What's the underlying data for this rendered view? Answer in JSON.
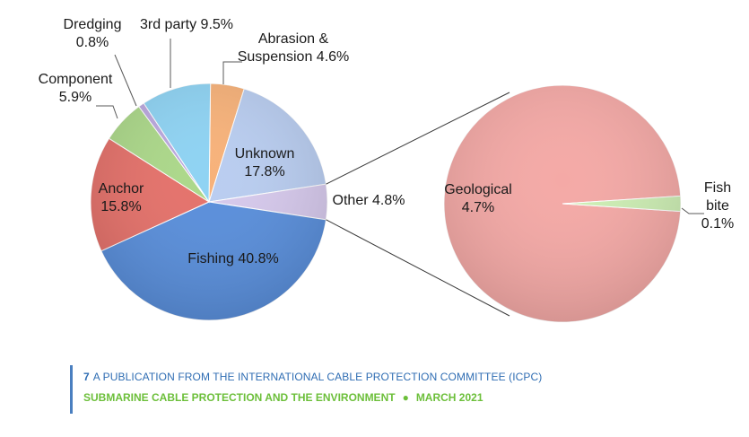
{
  "chart_data": {
    "type": "pie",
    "title": "",
    "main_pie": {
      "slices": [
        {
          "name": "Abrasion & Suspension",
          "value": 4.6,
          "label_lines": [
            "Abrasion &",
            "Suspension 4.6%"
          ],
          "color": "#f7b27a"
        },
        {
          "name": "Unknown",
          "value": 17.8,
          "label_lines": [
            "Unknown",
            "17.8%"
          ],
          "color": "#b9cdf0"
        },
        {
          "name": "Other",
          "value": 4.8,
          "label_lines": [
            "Other 4.8%"
          ],
          "color": "#d6c9ec"
        },
        {
          "name": "Fishing",
          "value": 40.8,
          "label_lines": [
            "Fishing 40.8%"
          ],
          "color": "#5a8fdb"
        },
        {
          "name": "Anchor",
          "value": 15.8,
          "label_lines": [
            "Anchor",
            "15.8%"
          ],
          "color": "#e5726b"
        },
        {
          "name": "Component",
          "value": 5.9,
          "label_lines": [
            "Component",
            "5.9%"
          ],
          "color": "#acd88a"
        },
        {
          "name": "Dredging",
          "value": 0.8,
          "label_lines": [
            "Dredging",
            "0.8%"
          ],
          "color": "#bba8de"
        },
        {
          "name": "3rd party",
          "value": 9.5,
          "label_lines": [
            "3rd party 9.5%"
          ],
          "color": "#8fd3f3"
        }
      ]
    },
    "breakdown_pie": {
      "of": "Other",
      "slices": [
        {
          "name": "Geological",
          "value": 4.7,
          "label_lines": [
            "Geological",
            "4.7%"
          ],
          "color": "#f4a9a6"
        },
        {
          "name": "Fish bite",
          "value": 0.1,
          "label_lines": [
            "Fish",
            "bite",
            "0.1%"
          ],
          "color": "#cdeeb4"
        }
      ]
    }
  },
  "footer": {
    "page_number": "7",
    "publication": "A PUBLICATION FROM THE INTERNATIONAL CABLE PROTECTION COMMITTEE (ICPC)",
    "report_title": "SUBMARINE CABLE PROTECTION AND THE ENVIRONMENT",
    "separator": "●",
    "date": "MARCH 2021"
  }
}
